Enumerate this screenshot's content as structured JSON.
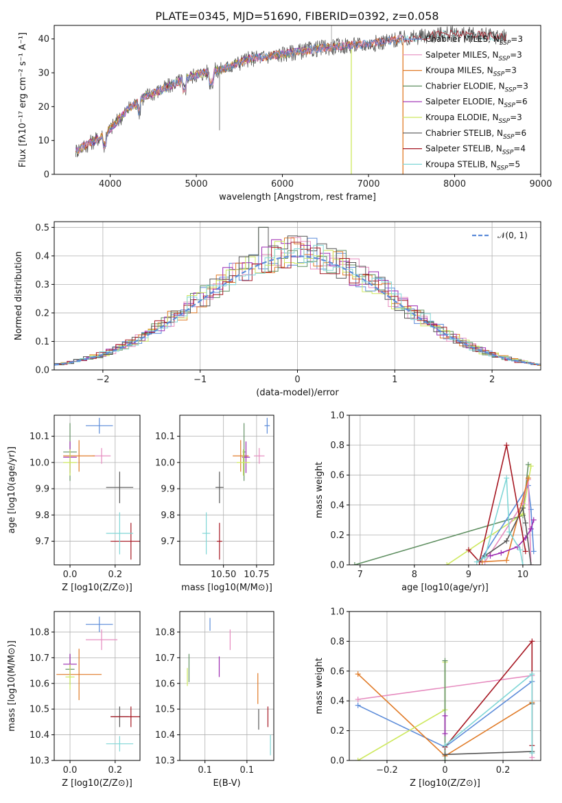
{
  "title": "PLATE=0345, MJD=51690, FIBERID=0392, z=0.058",
  "colors": {
    "Chabrier MILES": "#5b8bd9",
    "Salpeter MILES": "#e68bbf",
    "Kroupa MILES": "#e07a26",
    "Chabrier ELODIE": "#5f8f61",
    "Salpeter ELODIE": "#9b27b0",
    "Kroupa ELODIE": "#cde85c",
    "Chabrier STELIB": "#555555",
    "Salpeter STELIB": "#a51520",
    "Kroupa STELIB": "#7fd6d6"
  },
  "legend": [
    {
      "model": "Chabrier MILES",
      "prefix": "Chabrier MILES, N",
      "sub": "SSP",
      "suffix": "=3"
    },
    {
      "model": "Salpeter MILES",
      "prefix": "Salpeter MILES, N",
      "sub": "SSP",
      "suffix": "=3"
    },
    {
      "model": "Kroupa MILES",
      "prefix": "Kroupa MILES, N",
      "sub": "SSP",
      "suffix": "=3"
    },
    {
      "model": "Chabrier ELODIE",
      "prefix": "Chabrier ELODIE, N",
      "sub": "SSP",
      "suffix": "=3"
    },
    {
      "model": "Salpeter ELODIE",
      "prefix": "Salpeter ELODIE, N",
      "sub": "SSP",
      "suffix": "=6"
    },
    {
      "model": "Kroupa ELODIE",
      "prefix": "Kroupa ELODIE, N",
      "sub": "SSP",
      "suffix": "=3"
    },
    {
      "model": "Chabrier STELIB",
      "prefix": "Chabrier STELIB, N",
      "sub": "SSP",
      "suffix": "=6"
    },
    {
      "model": "Salpeter STELIB",
      "prefix": "Salpeter STELIB, N",
      "sub": "SSP",
      "suffix": "=4"
    },
    {
      "model": "Kroupa STELIB",
      "prefix": "Kroupa STELIB, N",
      "sub": "SSP",
      "suffix": "=5"
    }
  ],
  "chart_data": [
    {
      "id": "spectrum",
      "type": "line",
      "xlabel": "wavelength [Angstrom, rest frame]",
      "ylabel": "Flux [fλ10⁻¹⁷ erg cm⁻² s⁻¹ A⁻¹]",
      "xlim": [
        3350,
        9000
      ],
      "ylim": [
        0,
        44
      ],
      "xticks": [
        4000,
        5000,
        6000,
        7000,
        8000,
        9000
      ],
      "yticks": [
        0,
        10,
        20,
        30,
        40
      ],
      "spectrum_anchors": {
        "x": [
          3600,
          3750,
          3950,
          4200,
          4400,
          4600,
          4800,
          5000,
          5300,
          5600,
          6000,
          6500,
          7000,
          7400,
          7900,
          8300,
          8600
        ],
        "y": [
          7,
          9,
          12,
          19,
          23,
          25,
          27.5,
          29.5,
          31,
          34,
          35.5,
          37.5,
          38.5,
          40,
          41.5,
          41,
          40.5
        ]
      }
    },
    {
      "id": "residuals",
      "type": "line",
      "xlabel": "(data-model)/error",
      "ylabel": "Normed distribution",
      "xlim": [
        -2.5,
        2.5
      ],
      "ylim": [
        0,
        0.52
      ],
      "xticks": [
        -2,
        -1,
        0,
        1,
        2
      ],
      "yticks": [
        0.0,
        0.1,
        0.2,
        0.3,
        0.4,
        0.5
      ],
      "normal_label": "𝒩(0, 1)",
      "grid": true
    },
    {
      "id": "age_vs_Z",
      "type": "scatter",
      "xlabel": "Z [log10(Z/Z⊙)]",
      "ylabel": "age [log10(age/yr)]",
      "xlim": [
        -0.07,
        0.31
      ],
      "ylim": [
        9.61,
        10.18
      ],
      "xticks": [
        0.0,
        0.2
      ],
      "yticks": [
        9.7,
        9.8,
        9.9,
        10.0,
        10.1
      ],
      "points": [
        {
          "model": "Chabrier MILES",
          "x": 0.13,
          "y": 10.14,
          "xerr": 0.06,
          "yerr": 0.03
        },
        {
          "model": "Salpeter MILES",
          "x": 0.14,
          "y": 10.025,
          "xerr": 0.04,
          "yerr": 0.03
        },
        {
          "model": "Kroupa MILES",
          "x": 0.04,
          "y": 10.025,
          "xerr": 0.07,
          "yerr": 0.06
        },
        {
          "model": "Chabrier ELODIE",
          "x": 0.0,
          "y": 10.04,
          "xerr": 0.03,
          "yerr": 0.11
        },
        {
          "model": "Salpeter ELODIE",
          "x": 0.0,
          "y": 10.02,
          "xerr": 0.03,
          "yerr": 0.06
        },
        {
          "model": "Kroupa ELODIE",
          "x": 0.0,
          "y": 10.0,
          "xerr": 0.03,
          "yerr": 0.05
        },
        {
          "model": "Chabrier STELIB",
          "x": 0.22,
          "y": 9.905,
          "xerr": 0.06,
          "yerr": 0.06
        },
        {
          "model": "Salpeter STELIB",
          "x": 0.27,
          "y": 9.7,
          "xerr": 0.09,
          "yerr": 0.07
        },
        {
          "model": "Kroupa STELIB",
          "x": 0.22,
          "y": 9.73,
          "xerr": 0.06,
          "yerr": 0.08
        }
      ]
    },
    {
      "id": "age_vs_mass",
      "type": "scatter",
      "xlabel": "mass [log10(M/M⊙)]",
      "ylim": [
        9.61,
        10.18
      ],
      "xlim": [
        10.17,
        10.88
      ],
      "xticks": [
        10.5,
        10.75
      ],
      "yticks": [
        9.7,
        9.8,
        9.9,
        10.0,
        10.1
      ],
      "points": [
        {
          "model": "Chabrier MILES",
          "x": 10.83,
          "y": 10.14,
          "xerr": 0.02,
          "yerr": 0.03
        },
        {
          "model": "Salpeter MILES",
          "x": 10.77,
          "y": 10.025,
          "xerr": 0.04,
          "yerr": 0.03
        },
        {
          "model": "Kroupa MILES",
          "x": 10.63,
          "y": 10.025,
          "xerr": 0.06,
          "yerr": 0.06
        },
        {
          "model": "Chabrier ELODIE",
          "x": 10.655,
          "y": 10.04,
          "xerr": 0.01,
          "yerr": 0.11
        },
        {
          "model": "Salpeter ELODIE",
          "x": 10.67,
          "y": 10.02,
          "xerr": 0.03,
          "yerr": 0.06
        },
        {
          "model": "Kroupa ELODIE",
          "x": 10.65,
          "y": 10.0,
          "xerr": 0.05,
          "yerr": 0.05
        },
        {
          "model": "Chabrier STELIB",
          "x": 10.47,
          "y": 9.905,
          "xerr": 0.03,
          "yerr": 0.06
        },
        {
          "model": "Salpeter STELIB",
          "x": 10.47,
          "y": 9.7,
          "xerr": 0.02,
          "yerr": 0.07
        },
        {
          "model": "Kroupa STELIB",
          "x": 10.37,
          "y": 9.73,
          "xerr": 0.03,
          "yerr": 0.08
        }
      ]
    },
    {
      "id": "weight_vs_age",
      "type": "line",
      "xlabel": "age [log10(age/yr)]",
      "ylabel": "mass weight",
      "xlim": [
        6.8,
        10.33
      ],
      "ylim": [
        0,
        1
      ],
      "xticks": [
        7,
        8,
        9,
        10
      ],
      "yticks": [
        0.0,
        0.2,
        0.4,
        0.6,
        0.8,
        1.0
      ],
      "series": [
        {
          "model": "Chabrier ELODIE",
          "x": [
            6.9,
            10.0,
            10.1
          ],
          "y": [
            0.0,
            0.33,
            0.67
          ]
        },
        {
          "model": "Kroupa ELODIE",
          "x": [
            8.6,
            10.0,
            10.15
          ],
          "y": [
            0.0,
            0.34,
            0.66
          ]
        },
        {
          "model": "Chabrier MILES",
          "x": [
            9.2,
            10.1,
            10.15,
            10.2
          ],
          "y": [
            0.02,
            0.53,
            0.37,
            0.09
          ]
        },
        {
          "model": "Salpeter MILES",
          "x": [
            9.3,
            10.0,
            10.1,
            10.15
          ],
          "y": [
            0.02,
            0.41,
            0.57,
            0.0
          ]
        },
        {
          "model": "Kroupa MILES",
          "x": [
            9.25,
            9.7,
            10.1
          ],
          "y": [
            0.02,
            0.03,
            0.58
          ]
        },
        {
          "model": "Salpeter ELODIE",
          "x": [
            9.4,
            9.6,
            9.9,
            10.05,
            10.15,
            10.2
          ],
          "y": [
            0.06,
            0.08,
            0.12,
            0.18,
            0.24,
            0.3
          ]
        },
        {
          "model": "Chabrier STELIB",
          "x": [
            9.2,
            9.3,
            9.7,
            10.0,
            10.05,
            10.15
          ],
          "y": [
            0.02,
            0.06,
            0.16,
            0.38,
            0.28,
            0.0
          ]
        },
        {
          "model": "Salpeter STELIB",
          "x": [
            9.0,
            9.2,
            9.7,
            10.05
          ],
          "y": [
            0.1,
            0.02,
            0.8,
            0.09
          ]
        },
        {
          "model": "Kroupa STELIB",
          "x": [
            9.15,
            9.3,
            9.7,
            9.75,
            9.95,
            10.0
          ],
          "y": [
            0.02,
            0.05,
            0.58,
            0.22,
            0.1,
            0.0
          ]
        }
      ]
    },
    {
      "id": "mass_vs_Z",
      "type": "scatter",
      "xlabel": "Z [log10(Z/Z⊙)]",
      "ylabel": "mass [log10(M/M⊙)]",
      "xlim": [
        -0.07,
        0.31
      ],
      "ylim": [
        10.3,
        10.88
      ],
      "xticks": [
        0.0,
        0.2
      ],
      "yticks": [
        10.3,
        10.4,
        10.5,
        10.6,
        10.7,
        10.8
      ],
      "points": [
        {
          "model": "Chabrier MILES",
          "x": 0.13,
          "y": 10.83,
          "xerr": 0.06,
          "yerr": 0.03
        },
        {
          "model": "Salpeter MILES",
          "x": 0.14,
          "y": 10.77,
          "xerr": 0.07,
          "yerr": 0.04
        },
        {
          "model": "Kroupa MILES",
          "x": 0.04,
          "y": 10.635,
          "xerr": 0.1,
          "yerr": 0.1
        },
        {
          "model": "Chabrier ELODIE",
          "x": 0.0,
          "y": 10.655,
          "xerr": 0.02,
          "yerr": 0.06
        },
        {
          "model": "Salpeter ELODIE",
          "x": 0.0,
          "y": 10.675,
          "xerr": 0.03,
          "yerr": 0.04
        },
        {
          "model": "Kroupa ELODIE",
          "x": 0.0,
          "y": 10.625,
          "xerr": 0.02,
          "yerr": 0.05
        },
        {
          "model": "Chabrier STELIB",
          "x": 0.22,
          "y": 10.47,
          "xerr": 0.04,
          "yerr": 0.04
        },
        {
          "model": "Salpeter STELIB",
          "x": 0.27,
          "y": 10.47,
          "xerr": 0.09,
          "yerr": 0.04
        },
        {
          "model": "Kroupa STELIB",
          "x": 0.22,
          "y": 10.365,
          "xerr": 0.06,
          "yerr": 0.03
        }
      ]
    },
    {
      "id": "mass_vs_EBV",
      "type": "scatter",
      "xlabel": "E(B-V)",
      "xlim": [
        0.02,
        0.132
      ],
      "ylim": [
        10.3,
        10.88
      ],
      "xticks": [
        0.05,
        0.1
      ],
      "yticks": [
        10.3,
        10.4,
        10.5,
        10.6,
        10.7,
        10.8
      ],
      "points": [
        {
          "model": "Chabrier MILES",
          "x": 0.056,
          "y": 10.83,
          "yerr": 0.025
        },
        {
          "model": "Salpeter MILES",
          "x": 0.08,
          "y": 10.77,
          "yerr": 0.04
        },
        {
          "model": "Kroupa MILES",
          "x": 0.113,
          "y": 10.58,
          "yerr": 0.06
        },
        {
          "model": "Chabrier ELODIE",
          "x": 0.031,
          "y": 10.66,
          "yerr": 0.055
        },
        {
          "model": "Salpeter ELODIE",
          "x": 0.067,
          "y": 10.665,
          "yerr": 0.04
        },
        {
          "model": "Kroupa ELODIE",
          "x": 0.029,
          "y": 10.625,
          "yerr": 0.035
        },
        {
          "model": "Chabrier STELIB",
          "x": 0.114,
          "y": 10.46,
          "yerr": 0.04
        },
        {
          "model": "Salpeter STELIB",
          "x": 0.125,
          "y": 10.47,
          "yerr": 0.04
        },
        {
          "model": "Kroupa STELIB",
          "x": 0.128,
          "y": 10.36,
          "yerr": 0.04
        }
      ]
    },
    {
      "id": "weight_vs_Z",
      "type": "line",
      "xlabel": "Z [log10(Z/Z⊙)]",
      "ylabel": "mass weight",
      "xlim": [
        -0.33,
        0.33
      ],
      "ylim": [
        0,
        1
      ],
      "xticks": [
        -0.2,
        0.0,
        0.2
      ],
      "yticks": [
        0.0,
        0.2,
        0.4,
        0.6,
        0.8,
        1.0
      ],
      "series": [
        {
          "model": "Chabrier MILES",
          "x": [
            -0.3,
            0.0,
            0.3
          ],
          "y": [
            0.37,
            0.09,
            0.53
          ]
        },
        {
          "model": "Salpeter MILES",
          "x": [
            -0.3,
            0.3,
            0.3
          ],
          "y": [
            0.41,
            0.57,
            0.02
          ]
        },
        {
          "model": "Kroupa MILES",
          "x": [
            -0.3,
            0.0,
            0.3
          ],
          "y": [
            0.58,
            0.03,
            0.39
          ]
        },
        {
          "model": "Kroupa ELODIE",
          "x": [
            -0.3,
            0.0,
            0.0
          ],
          "y": [
            0.0,
            0.34,
            0.66
          ]
        },
        {
          "model": "Chabrier ELODIE",
          "x": [
            0.0,
            0.0
          ],
          "y": [
            0.0,
            0.67
          ]
        },
        {
          "model": "Salpeter ELODIE",
          "x": [
            0.0,
            0.0
          ],
          "y": [
            0.18,
            0.3
          ]
        },
        {
          "model": "Chabrier STELIB",
          "x": [
            0.0,
            0.3,
            0.3
          ],
          "y": [
            0.04,
            0.06,
            0.38
          ]
        },
        {
          "model": "Salpeter STELIB",
          "x": [
            0.0,
            0.3,
            0.3
          ],
          "y": [
            0.09,
            0.8,
            0.1
          ]
        },
        {
          "model": "Kroupa STELIB",
          "x": [
            0.0,
            0.3,
            0.3
          ],
          "y": [
            0.1,
            0.58,
            0.05
          ]
        }
      ]
    }
  ]
}
